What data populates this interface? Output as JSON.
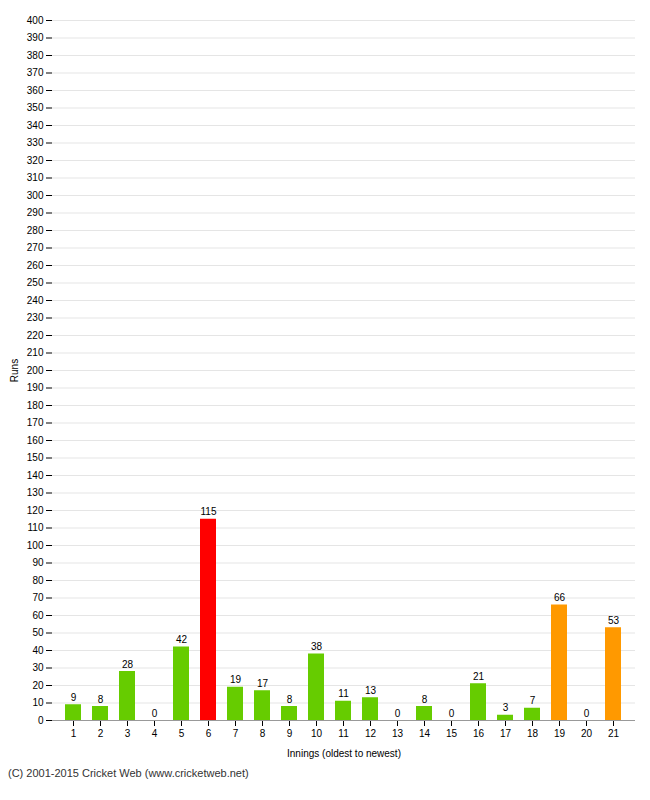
{
  "chart_data": {
    "type": "bar",
    "xlabel": "Innings (oldest to newest)",
    "ylabel": "Runs",
    "caption": "(C) 2001-2015 Cricket Web (www.cricketweb.net)",
    "categories": [
      "1",
      "2",
      "3",
      "4",
      "5",
      "6",
      "7",
      "8",
      "9",
      "10",
      "11",
      "12",
      "13",
      "14",
      "15",
      "16",
      "17",
      "18",
      "19",
      "20",
      "21"
    ],
    "values": [
      9,
      8,
      28,
      0,
      42,
      115,
      19,
      17,
      8,
      38,
      11,
      13,
      0,
      8,
      0,
      21,
      3,
      7,
      66,
      0,
      53
    ],
    "colors": [
      "#66cc00",
      "#66cc00",
      "#66cc00",
      "#66cc00",
      "#66cc00",
      "#ff0000",
      "#66cc00",
      "#66cc00",
      "#66cc00",
      "#66cc00",
      "#66cc00",
      "#66cc00",
      "#66cc00",
      "#66cc00",
      "#66cc00",
      "#66cc00",
      "#66cc00",
      "#66cc00",
      "#ff9900",
      "#ff9900",
      "#ff9900"
    ],
    "ylim": [
      0,
      400
    ],
    "yticks": [
      0,
      10,
      20,
      30,
      40,
      50,
      60,
      70,
      80,
      90,
      100,
      110,
      120,
      130,
      140,
      150,
      160,
      170,
      180,
      190,
      200,
      210,
      220,
      230,
      240,
      250,
      260,
      270,
      280,
      290,
      300,
      310,
      320,
      330,
      340,
      350,
      360,
      370,
      380,
      390,
      400
    ],
    "grid": true,
    "data_labels": true
  }
}
